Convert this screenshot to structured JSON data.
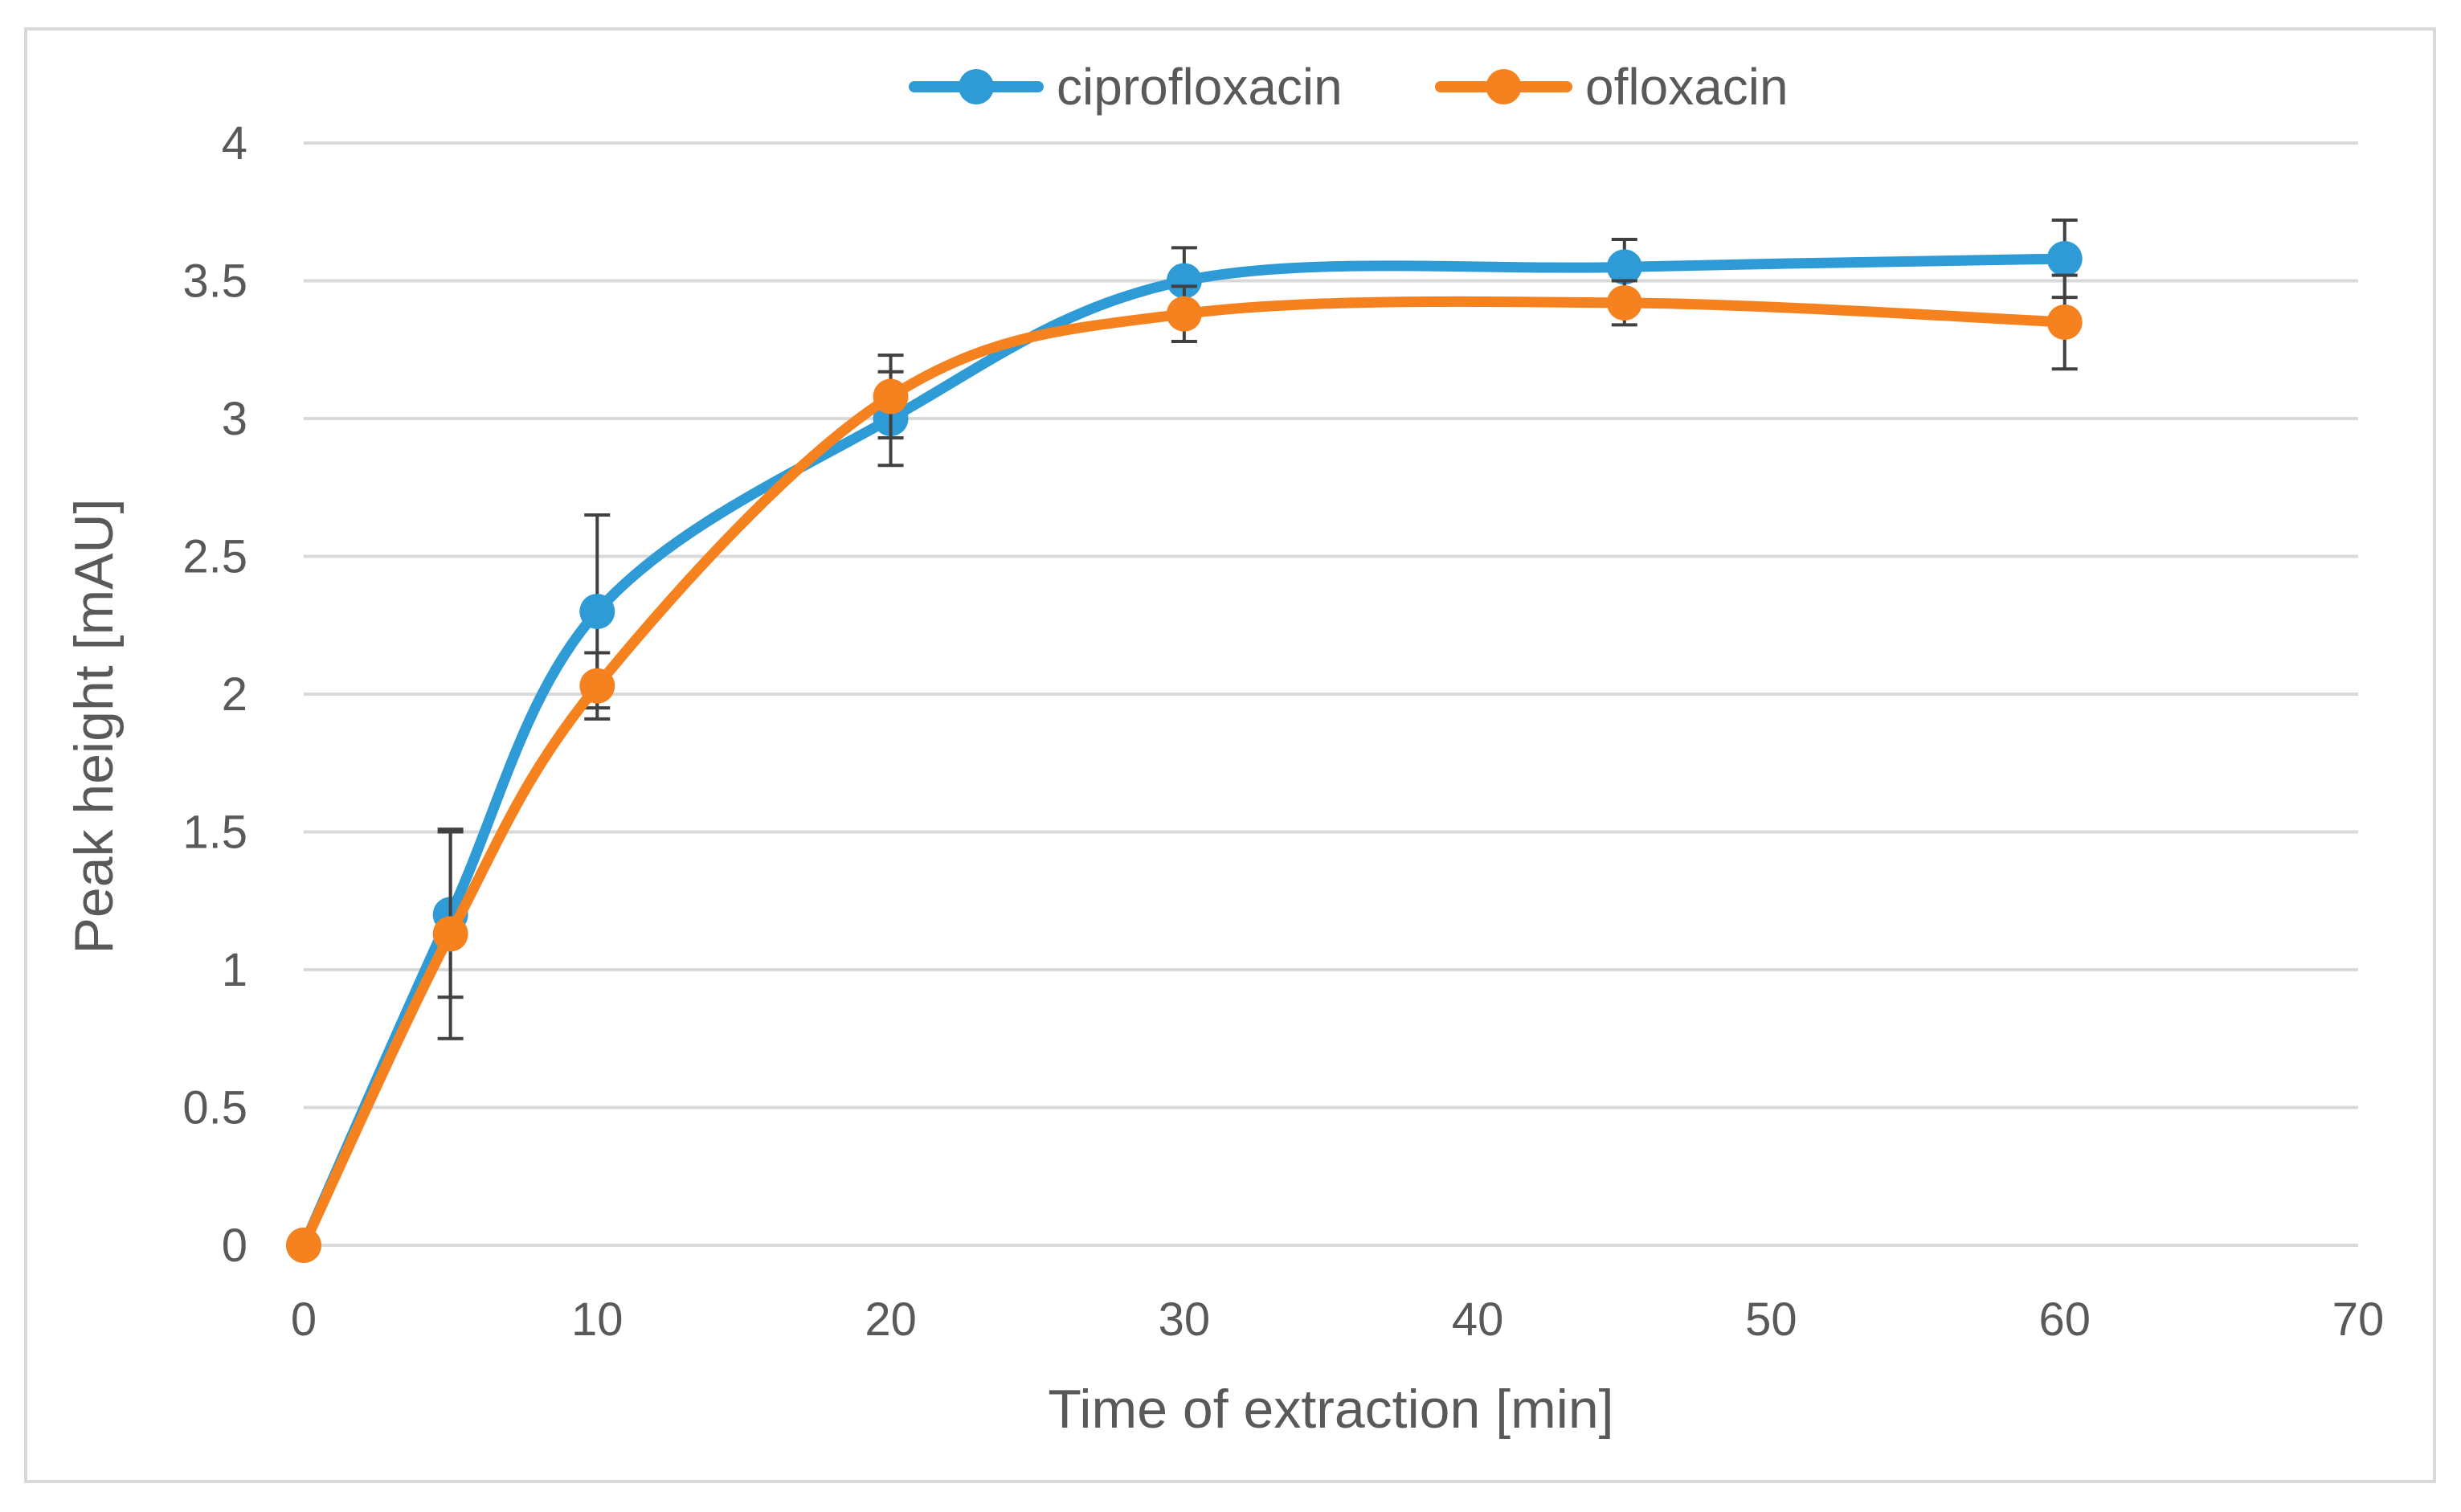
{
  "chart_data": {
    "type": "line",
    "title": "",
    "xlabel": "Time of extraction [min]",
    "ylabel": "Peak height [mAU]",
    "xlim": [
      0,
      70
    ],
    "ylim": [
      0,
      4
    ],
    "x_ticks": [
      "0",
      "10",
      "20",
      "30",
      "40",
      "50",
      "60",
      "70"
    ],
    "y_ticks": [
      "0",
      "0.5",
      "1",
      "1.5",
      "2",
      "2.5",
      "3",
      "3.5",
      "4"
    ],
    "grid": "horizontal",
    "legend_position": "top-center",
    "smooth": true,
    "error_bar_color": "#404040",
    "series": [
      {
        "name": "ciprofloxacin",
        "color": "#2e9bd6",
        "x": [
          0,
          5,
          10,
          20,
          30,
          45,
          60
        ],
        "y": [
          0,
          1.2,
          2.3,
          3.0,
          3.5,
          3.55,
          3.58
        ],
        "error": [
          0,
          0.3,
          0.35,
          0.17,
          0.12,
          0.1,
          0.14
        ]
      },
      {
        "name": "ofloxacin",
        "color": "#f5821f",
        "x": [
          0,
          5,
          10,
          20,
          30,
          45,
          60
        ],
        "y": [
          0,
          1.13,
          2.03,
          3.08,
          3.38,
          3.42,
          3.35
        ],
        "error": [
          0,
          0.38,
          0.12,
          0.15,
          0.1,
          0.08,
          0.17
        ]
      }
    ]
  }
}
